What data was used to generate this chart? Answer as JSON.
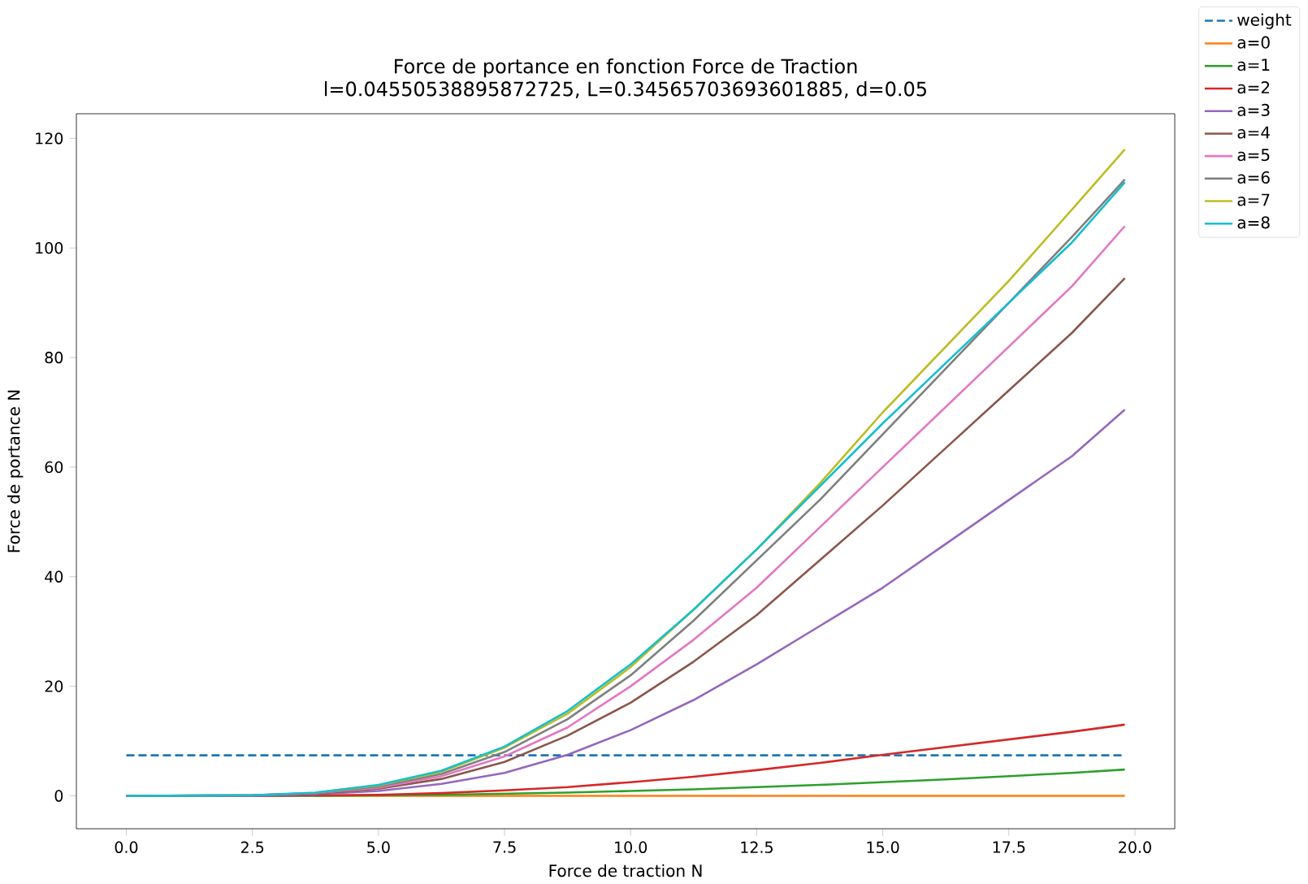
{
  "chart_data": {
    "type": "line",
    "title": "Force de portance en fonction Force de Traction",
    "subtitle": "l=0.04550538895872725, L=0.34565703693601885, d=0.05",
    "xlabel": "Force de traction N",
    "ylabel": "Force de portance N",
    "x": [
      0,
      2.5,
      3.75,
      5,
      6.25,
      7.5,
      8.75,
      10,
      11.25,
      12.5,
      13.75,
      15,
      16.25,
      17.5,
      18.75,
      19.8
    ],
    "xlim": [
      -0.99,
      20.79
    ],
    "ylim": [
      -6,
      124.5
    ],
    "xticks": [
      {
        "value": 0,
        "label": "0.0"
      },
      {
        "value": 2.5,
        "label": "2.5"
      },
      {
        "value": 5,
        "label": "5.0"
      },
      {
        "value": 7.5,
        "label": "7.5"
      },
      {
        "value": 10,
        "label": "10.0"
      },
      {
        "value": 12.5,
        "label": "12.5"
      },
      {
        "value": 15,
        "label": "15.0"
      },
      {
        "value": 17.5,
        "label": "17.5"
      },
      {
        "value": 20,
        "label": "20.0"
      }
    ],
    "yticks": [
      0,
      20,
      40,
      60,
      80,
      100,
      120
    ],
    "legend": "top right",
    "series": [
      {
        "name": "weight",
        "color": "#1f77b4",
        "line_style": "dashed",
        "x": [
          0,
          19.8
        ],
        "values": [
          7.4,
          7.4
        ]
      },
      {
        "name": "a=0",
        "color": "#ff7f0e",
        "values": [
          null,
          null,
          0,
          0,
          0,
          0,
          0,
          0,
          0,
          0,
          0,
          0,
          0,
          0,
          0,
          0
        ]
      },
      {
        "name": "a=1",
        "color": "#2ca02c",
        "values": [
          0,
          0,
          0,
          0.1,
          0.2,
          0.4,
          0.6,
          0.9,
          1.2,
          1.6,
          2,
          2.5,
          3,
          3.6,
          4.2,
          4.8
        ]
      },
      {
        "name": "a=2",
        "color": "#d62728",
        "values": [
          0,
          0,
          0.1,
          0.2,
          0.5,
          1,
          1.6,
          2.5,
          3.5,
          4.7,
          6,
          7.5,
          8.9,
          10.3,
          11.7,
          13
        ]
      },
      {
        "name": "a=3",
        "color": "#9467bd",
        "values": [
          0,
          0,
          0.3,
          0.9,
          2.2,
          4.2,
          7.5,
          12,
          17.5,
          24,
          31,
          38,
          46,
          54,
          62,
          70.5
        ]
      },
      {
        "name": "a=4",
        "color": "#8c564b",
        "values": [
          0,
          0.1,
          0.4,
          1.3,
          3.1,
          6.2,
          11,
          17,
          24.5,
          33,
          43,
          53,
          63.5,
          74,
          84.5,
          94.5
        ]
      },
      {
        "name": "a=5",
        "color": "#e377c2",
        "values": [
          0,
          0.1,
          0.5,
          1.5,
          3.6,
          7.2,
          12.5,
          20,
          28.5,
          38,
          49,
          60,
          71,
          82,
          93,
          104
        ]
      },
      {
        "name": "a=6",
        "color": "#7f7f7f",
        "values": [
          0,
          0.1,
          0.5,
          1.7,
          4,
          8,
          14,
          22,
          32,
          43,
          54,
          66,
          78,
          90,
          102,
          112.5
        ]
      },
      {
        "name": "a=7",
        "color": "#bcbd22",
        "values": [
          null,
          null,
          0.6,
          1.9,
          4.4,
          8.8,
          15,
          23.5,
          34,
          45,
          57,
          70,
          82,
          94,
          107,
          118
        ]
      },
      {
        "name": "a=8",
        "color": "#17becf",
        "values": [
          0,
          0.1,
          0.6,
          2,
          4.6,
          9,
          15.5,
          24,
          34,
          45,
          56.5,
          68,
          79,
          90,
          101,
          112
        ]
      }
    ]
  }
}
